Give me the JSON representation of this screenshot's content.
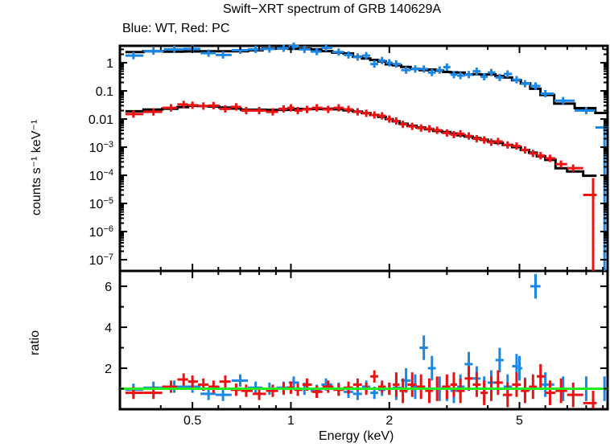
{
  "chart_data": [
    {
      "panel": "spectrum",
      "type": "scatter",
      "title": "Swift−XRT spectrum of GRB 140629A",
      "subtitle": "Blue: WT, Red: PC",
      "xlabel": "Energy (keV)",
      "ylabel": "counts s⁻¹ keV⁻¹",
      "xscale": "log",
      "yscale": "log",
      "xlim": [
        0.3,
        9.3
      ],
      "ylim": [
        4e-08,
        4
      ],
      "xticks": [
        {
          "v": 0.5,
          "label": "0.5"
        },
        {
          "v": 1,
          "label": "1"
        },
        {
          "v": 2,
          "label": "2"
        },
        {
          "v": 5,
          "label": "5"
        }
      ],
      "yticks": [
        {
          "v": 1,
          "label": "1"
        },
        {
          "v": 0.1,
          "label": "0.1"
        },
        {
          "v": 0.01,
          "label": "0.01"
        },
        {
          "v": 0.001,
          "label": "10",
          "exp": "−3"
        },
        {
          "v": 0.0001,
          "label": "10",
          "exp": "−4"
        },
        {
          "v": 1e-05,
          "label": "10",
          "exp": "−5"
        },
        {
          "v": 1e-06,
          "label": "10",
          "exp": "−6"
        },
        {
          "v": 1e-07,
          "label": "10",
          "exp": "−7"
        }
      ],
      "series": [
        {
          "name": "WT",
          "color": "#1a87e6",
          "points": [
            [
              0.33,
              1.8
            ],
            [
              0.38,
              2.6
            ],
            [
              0.44,
              3.0
            ],
            [
              0.5,
              3.1
            ],
            [
              0.56,
              2.2
            ],
            [
              0.62,
              1.9
            ],
            [
              0.7,
              2.8
            ],
            [
              0.78,
              3.0
            ],
            [
              0.86,
              3.1
            ],
            [
              0.95,
              3.3
            ],
            [
              1.02,
              3.9
            ],
            [
              1.1,
              3.0
            ],
            [
              1.2,
              2.5
            ],
            [
              1.28,
              3.4
            ],
            [
              1.4,
              2.4
            ],
            [
              1.5,
              1.9
            ],
            [
              1.6,
              1.6
            ],
            [
              1.7,
              1.8
            ],
            [
              1.8,
              0.9
            ],
            [
              1.9,
              1.2
            ],
            [
              2.0,
              1.0
            ],
            [
              2.1,
              0.9
            ],
            [
              2.25,
              0.55
            ],
            [
              2.4,
              0.6
            ],
            [
              2.55,
              0.6
            ],
            [
              2.7,
              0.45
            ],
            [
              2.85,
              0.55
            ],
            [
              3.0,
              0.7
            ],
            [
              3.15,
              0.38
            ],
            [
              3.3,
              0.35
            ],
            [
              3.5,
              0.38
            ],
            [
              3.7,
              0.5
            ],
            [
              3.9,
              0.32
            ],
            [
              4.1,
              0.45
            ],
            [
              4.35,
              0.3
            ],
            [
              4.6,
              0.4
            ],
            [
              4.9,
              0.25
            ],
            [
              5.2,
              0.18
            ],
            [
              5.6,
              0.15
            ],
            [
              6.0,
              0.08
            ],
            [
              6.8,
              0.045
            ],
            [
              8.0,
              0.02
            ],
            [
              9.1,
              0.005
            ]
          ]
        },
        {
          "name": "PC",
          "color": "#ee1111",
          "points": [
            [
              0.33,
              0.015
            ],
            [
              0.38,
              0.018
            ],
            [
              0.43,
              0.025
            ],
            [
              0.47,
              0.033
            ],
            [
              0.5,
              0.031
            ],
            [
              0.54,
              0.029
            ],
            [
              0.58,
              0.03
            ],
            [
              0.63,
              0.023
            ],
            [
              0.68,
              0.027
            ],
            [
              0.73,
              0.02
            ],
            [
              0.8,
              0.02
            ],
            [
              0.88,
              0.018
            ],
            [
              0.95,
              0.023
            ],
            [
              1.0,
              0.025
            ],
            [
              1.05,
              0.02
            ],
            [
              1.12,
              0.022
            ],
            [
              1.2,
              0.025
            ],
            [
              1.3,
              0.022
            ],
            [
              1.4,
              0.025
            ],
            [
              1.5,
              0.022
            ],
            [
              1.6,
              0.018
            ],
            [
              1.7,
              0.016
            ],
            [
              1.8,
              0.014
            ],
            [
              1.9,
              0.013
            ],
            [
              2.0,
              0.01
            ],
            [
              2.1,
              0.0085
            ],
            [
              2.2,
              0.0065
            ],
            [
              2.35,
              0.0055
            ],
            [
              2.5,
              0.0048
            ],
            [
              2.65,
              0.0045
            ],
            [
              2.8,
              0.004
            ],
            [
              3.0,
              0.0032
            ],
            [
              3.15,
              0.0028
            ],
            [
              3.3,
              0.003
            ],
            [
              3.5,
              0.0025
            ],
            [
              3.7,
              0.002
            ],
            [
              3.9,
              0.0018
            ],
            [
              4.1,
              0.0015
            ],
            [
              4.3,
              0.0016
            ],
            [
              4.6,
              0.0012
            ],
            [
              4.9,
              0.0011
            ],
            [
              5.2,
              0.0008
            ],
            [
              5.5,
              0.0006
            ],
            [
              5.8,
              0.0005
            ],
            [
              6.2,
              0.0004
            ],
            [
              6.7,
              0.00025
            ],
            [
              7.3,
              0.00018
            ],
            [
              8.4,
              2e-05
            ]
          ]
        },
        {
          "name": "model",
          "color": "#000000"
        }
      ],
      "grid": false
    },
    {
      "panel": "ratio",
      "type": "scatter",
      "xlabel": "Energy (keV)",
      "ylabel": "ratio",
      "xscale": "log",
      "xlim": [
        0.3,
        9.3
      ],
      "ylim": [
        0.0,
        6.75
      ],
      "xticks": [
        {
          "v": 0.5,
          "label": "0.5"
        },
        {
          "v": 1,
          "label": "1"
        },
        {
          "v": 2,
          "label": "2"
        },
        {
          "v": 5,
          "label": "5"
        }
      ],
      "yticks": [
        {
          "v": 2,
          "label": "2"
        },
        {
          "v": 4,
          "label": "4"
        },
        {
          "v": 6,
          "label": "6"
        }
      ],
      "reference_line": {
        "y": 1.0,
        "color": "#22ee22"
      },
      "series": [
        {
          "name": "WT",
          "color": "#1a87e6",
          "points": [
            [
              0.33,
              0.95
            ],
            [
              0.38,
              1.05
            ],
            [
              0.44,
              1.1
            ],
            [
              0.5,
              1.1
            ],
            [
              0.56,
              0.75
            ],
            [
              0.62,
              0.7
            ],
            [
              0.7,
              1.4
            ],
            [
              0.78,
              1.05
            ],
            [
              0.86,
              1.0
            ],
            [
              0.95,
              1.05
            ],
            [
              1.02,
              1.3
            ],
            [
              1.1,
              1.0
            ],
            [
              1.2,
              0.9
            ],
            [
              1.28,
              1.2
            ],
            [
              1.4,
              1.0
            ],
            [
              1.5,
              0.85
            ],
            [
              1.6,
              0.75
            ],
            [
              1.7,
              1.1
            ],
            [
              1.8,
              0.8
            ],
            [
              1.9,
              0.95
            ],
            [
              2.0,
              1.0
            ],
            [
              2.1,
              1.05
            ],
            [
              2.25,
              1.4
            ],
            [
              2.4,
              1.1
            ],
            [
              2.55,
              3.0
            ],
            [
              2.7,
              2.0
            ],
            [
              2.85,
              1.0
            ],
            [
              3.0,
              1.0
            ],
            [
              3.15,
              0.9
            ],
            [
              3.3,
              1.1
            ],
            [
              3.5,
              2.2
            ],
            [
              3.7,
              1.5
            ],
            [
              3.9,
              1.0
            ],
            [
              4.1,
              1.3
            ],
            [
              4.35,
              2.4
            ],
            [
              4.6,
              1.1
            ],
            [
              4.9,
              2.1
            ],
            [
              5.0,
              2.0
            ],
            [
              5.2,
              0.95
            ],
            [
              5.6,
              6.0
            ],
            [
              6.0,
              1.2
            ],
            [
              6.8,
              1.0
            ],
            [
              8.0,
              1.0
            ],
            [
              9.1,
              1.0
            ]
          ]
        },
        {
          "name": "PC",
          "color": "#ee1111",
          "points": [
            [
              0.33,
              0.8
            ],
            [
              0.38,
              0.8
            ],
            [
              0.43,
              1.1
            ],
            [
              0.47,
              1.45
            ],
            [
              0.5,
              1.35
            ],
            [
              0.54,
              1.2
            ],
            [
              0.58,
              1.1
            ],
            [
              0.63,
              1.35
            ],
            [
              0.68,
              0.95
            ],
            [
              0.73,
              0.9
            ],
            [
              0.8,
              0.75
            ],
            [
              0.88,
              0.9
            ],
            [
              0.95,
              1.0
            ],
            [
              1.0,
              1.05
            ],
            [
              1.05,
              0.95
            ],
            [
              1.12,
              1.2
            ],
            [
              1.2,
              0.85
            ],
            [
              1.3,
              1.1
            ],
            [
              1.4,
              0.95
            ],
            [
              1.5,
              1.05
            ],
            [
              1.6,
              1.2
            ],
            [
              1.7,
              1.0
            ],
            [
              1.8,
              1.6
            ],
            [
              1.9,
              1.1
            ],
            [
              2.0,
              1.0
            ],
            [
              2.1,
              1.2
            ],
            [
              2.2,
              0.9
            ],
            [
              2.35,
              1.2
            ],
            [
              2.5,
              1.1
            ],
            [
              2.65,
              0.9
            ],
            [
              2.8,
              1.0
            ],
            [
              3.0,
              1.1
            ],
            [
              3.15,
              1.2
            ],
            [
              3.3,
              0.9
            ],
            [
              3.5,
              1.5
            ],
            [
              3.7,
              1.2
            ],
            [
              3.9,
              0.8
            ],
            [
              4.1,
              1.0
            ],
            [
              4.3,
              1.3
            ],
            [
              4.6,
              0.7
            ],
            [
              4.9,
              1.2
            ],
            [
              5.2,
              0.9
            ],
            [
              5.5,
              1.1
            ],
            [
              5.8,
              1.6
            ],
            [
              6.2,
              0.8
            ],
            [
              6.7,
              0.9
            ],
            [
              7.3,
              0.7
            ],
            [
              8.4,
              0.3
            ]
          ]
        }
      ],
      "grid": false
    }
  ],
  "labels": {
    "title": "Swift−XRT spectrum of GRB 140629A",
    "subtitle": "Blue: WT, Red: PC",
    "xlabel": "Energy (keV)",
    "ylabel_top": "counts s⁻¹ keV⁻¹",
    "ylabel_bottom": "ratio"
  }
}
